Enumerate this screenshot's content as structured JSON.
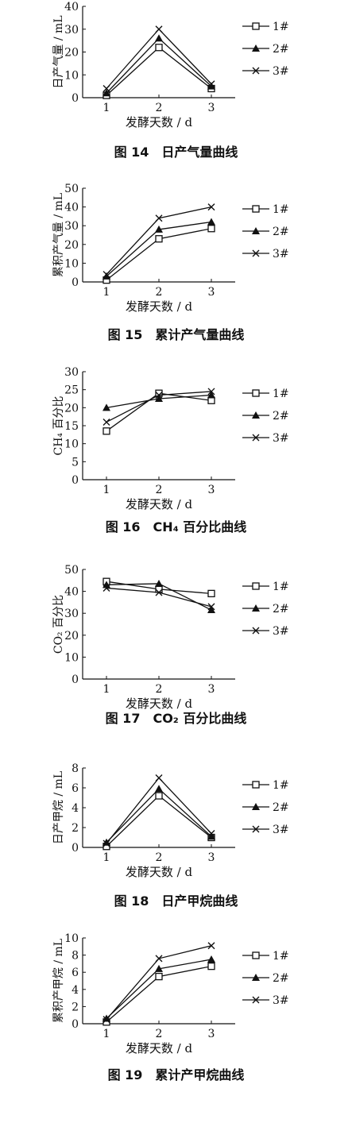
{
  "x_label": "发酵天数 / d",
  "legend_labels": [
    "1#",
    "2#",
    "3#"
  ],
  "chart_data": [
    {
      "type": "line",
      "caption": "图 14　日产气量曲线",
      "ylabel": "日产气量 / mL",
      "x": [
        1,
        2,
        3
      ],
      "ylim": [
        0,
        40
      ],
      "yticks": [
        0,
        10,
        20,
        30,
        40
      ],
      "series": [
        {
          "name": "1#",
          "values": [
            1,
            22,
            4
          ]
        },
        {
          "name": "2#",
          "values": [
            2,
            26,
            5
          ]
        },
        {
          "name": "3#",
          "values": [
            4,
            30,
            6
          ]
        }
      ],
      "legend": "right"
    },
    {
      "type": "line",
      "caption": "图 15　累计产气量曲线",
      "ylabel": "累积产气量 / mL",
      "x": [
        1,
        2,
        3
      ],
      "ylim": [
        0,
        50
      ],
      "yticks": [
        0,
        10,
        20,
        30,
        40,
        50
      ],
      "series": [
        {
          "name": "1#",
          "values": [
            1,
            23,
            28.5
          ]
        },
        {
          "name": "2#",
          "values": [
            3,
            28,
            32
          ]
        },
        {
          "name": "3#",
          "values": [
            4,
            34,
            40
          ]
        }
      ],
      "legend": "right"
    },
    {
      "type": "line",
      "caption": "图 16　CH₄ 百分比曲线",
      "ylabel": "CH₄ 百分比",
      "x": [
        1,
        2,
        3
      ],
      "ylim": [
        0,
        30
      ],
      "yticks": [
        0,
        5,
        10,
        15,
        20,
        25,
        30
      ],
      "series": [
        {
          "name": "1#",
          "values": [
            13.5,
            24,
            22
          ]
        },
        {
          "name": "2#",
          "values": [
            20,
            22.5,
            23.5
          ]
        },
        {
          "name": "3#",
          "values": [
            16,
            23.5,
            24.5
          ]
        }
      ],
      "legend": "right"
    },
    {
      "type": "line",
      "caption": "图 17　CO₂ 百分比曲线",
      "ylabel": "CO₂ 百分比",
      "x": [
        1,
        2,
        3
      ],
      "ylim": [
        0,
        50
      ],
      "yticks": [
        0,
        10,
        20,
        30,
        40,
        50
      ],
      "series": [
        {
          "name": "1#",
          "values": [
            44.5,
            41,
            39
          ]
        },
        {
          "name": "2#",
          "values": [
            43,
            43.5,
            31.5
          ]
        },
        {
          "name": "3#",
          "values": [
            41.5,
            39.5,
            33
          ]
        }
      ],
      "legend": "right"
    },
    {
      "type": "line",
      "caption": "图 18　日产甲烷曲线",
      "ylabel": "日产甲烷 / mL",
      "x": [
        1,
        2,
        3
      ],
      "ylim": [
        0,
        8
      ],
      "yticks": [
        0,
        2,
        4,
        6,
        8
      ],
      "series": [
        {
          "name": "1#",
          "values": [
            0.1,
            5.2,
            1
          ]
        },
        {
          "name": "2#",
          "values": [
            0.5,
            5.9,
            1.1
          ]
        },
        {
          "name": "3#",
          "values": [
            0.4,
            7,
            1.4
          ]
        }
      ],
      "legend": "right"
    },
    {
      "type": "line",
      "caption": "图 19　累计产甲烷曲线",
      "ylabel": "累积产甲烷 / mL",
      "x": [
        1,
        2,
        3
      ],
      "ylim": [
        0,
        10
      ],
      "yticks": [
        0,
        2,
        4,
        6,
        8,
        10
      ],
      "series": [
        {
          "name": "1#",
          "values": [
            0.2,
            5.5,
            6.7
          ]
        },
        {
          "name": "2#",
          "values": [
            0.6,
            6.4,
            7.5
          ]
        },
        {
          "name": "3#",
          "values": [
            0.5,
            7.6,
            9.1
          ]
        }
      ],
      "legend": "right"
    }
  ]
}
